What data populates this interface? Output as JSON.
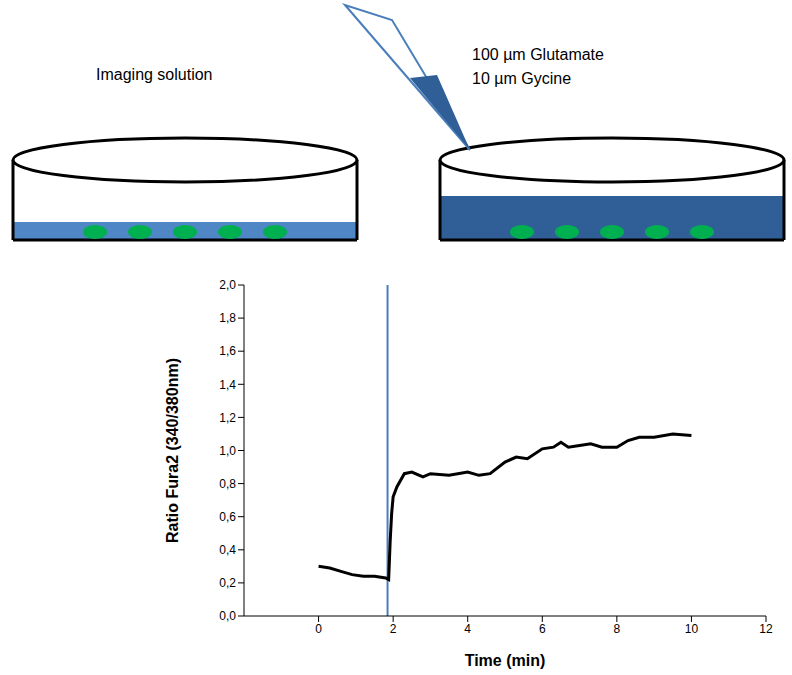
{
  "diagram": {
    "left_dish": {
      "label": "Imaging solution"
    },
    "right_dish": {
      "labels": [
        "100 µm Glutamate",
        "10 µm Gycine"
      ]
    }
  },
  "chart_data": {
    "type": "line",
    "x_label": "Time (min)",
    "y_label": "Ratio Fura2 (340/380nm)",
    "x": [
      0,
      0.3,
      0.6,
      0.9,
      1.2,
      1.5,
      1.8,
      1.88,
      1.92,
      1.96,
      2.0,
      2.1,
      2.3,
      2.5,
      2.8,
      3.0,
      3.5,
      4.0,
      4.3,
      4.6,
      5.0,
      5.3,
      5.6,
      6.0,
      6.3,
      6.5,
      6.7,
      7.0,
      7.3,
      7.6,
      8.0,
      8.3,
      8.6,
      9.0,
      9.5,
      10.0
    ],
    "values": [
      0.3,
      0.29,
      0.27,
      0.25,
      0.24,
      0.24,
      0.23,
      0.22,
      0.45,
      0.62,
      0.72,
      0.78,
      0.86,
      0.87,
      0.84,
      0.86,
      0.85,
      0.87,
      0.85,
      0.86,
      0.93,
      0.96,
      0.95,
      1.01,
      1.02,
      1.05,
      1.02,
      1.03,
      1.04,
      1.02,
      1.02,
      1.06,
      1.08,
      1.08,
      1.1,
      1.09
    ],
    "color": "#000000",
    "xlim": [
      -2,
      12
    ],
    "xticks": [
      0,
      2,
      4,
      6,
      8,
      10,
      12
    ],
    "ylim": [
      0,
      2
    ],
    "yticks": [
      {
        "value": 0,
        "label": "0,0"
      },
      {
        "value": 0.2,
        "label": "0,2"
      },
      {
        "value": 0.4,
        "label": "0,4"
      },
      {
        "value": 0.6,
        "label": "0,6"
      },
      {
        "value": 0.8,
        "label": "0,8"
      },
      {
        "value": 1.0,
        "label": "1,0"
      },
      {
        "value": 1.2,
        "label": "1,2"
      },
      {
        "value": 1.4,
        "label": "1,4"
      },
      {
        "value": 1.6,
        "label": "1,6"
      },
      {
        "value": 1.8,
        "label": "1,8"
      },
      {
        "value": 2.0,
        "label": "2,0"
      }
    ],
    "reference_x": 1.85,
    "grid": false
  }
}
